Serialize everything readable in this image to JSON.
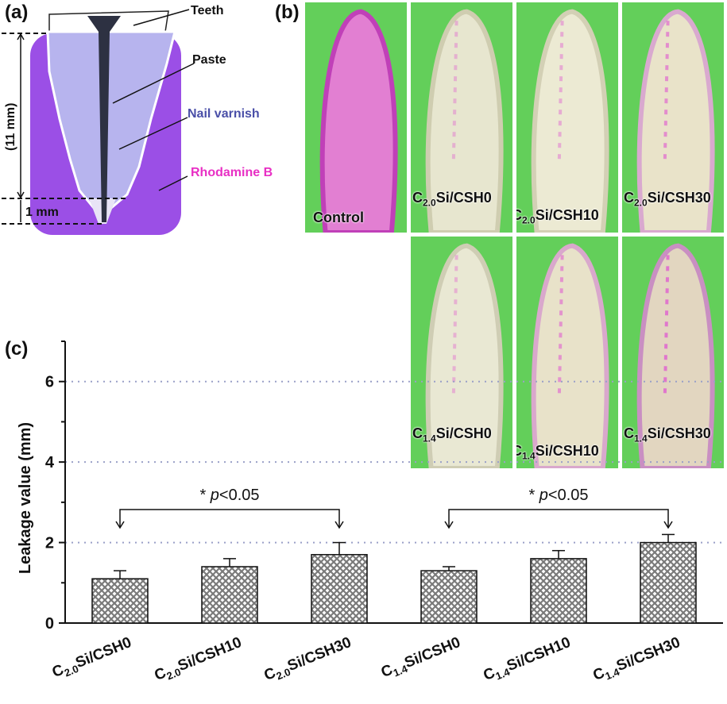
{
  "panel_labels": {
    "a": "(a)",
    "b": "(b)",
    "c": "(c)"
  },
  "schematic": {
    "teeth": "Teeth",
    "paste": "Paste",
    "nail_varnish": "Nail varnish",
    "rhodamine": "Rhodamine B",
    "len_11": "(11 mm)",
    "len_1": "1 mm",
    "colors": {
      "purple": "#9b4fe6",
      "root": "#b7b4ee",
      "paste": "#2d3142",
      "varnish_text": "#4a4fa8",
      "rhodamine_text": "#e82fc4"
    }
  },
  "photos": [
    {
      "label": "Control",
      "main": "",
      "sub": ""
    },
    {
      "label": "",
      "main": "C",
      "sub": "2.0",
      "tail": "Si/CSH0"
    },
    {
      "label": "",
      "main": "C",
      "sub": "2.0",
      "tail": "Si/CSH10"
    },
    {
      "label": "",
      "main": "C",
      "sub": "2.0",
      "tail": "Si/CSH30"
    },
    {
      "label": "",
      "main": "C",
      "sub": "1.4",
      "tail": "Si/CSH0"
    },
    {
      "label": "",
      "main": "C",
      "sub": "1.4",
      "tail": "Si/CSH10"
    },
    {
      "label": "",
      "main": "C",
      "sub": "1.4",
      "tail": "Si/CSH30"
    }
  ],
  "significance": [
    {
      "star": "* ",
      "p": "p",
      "text": "<0.05"
    },
    {
      "star": "* ",
      "p": "p",
      "text": "<0.05"
    }
  ],
  "chart_data": {
    "type": "bar",
    "categories": [
      {
        "main": "C",
        "sub": "2.0",
        "tail": "Si/CSH0"
      },
      {
        "main": "C",
        "sub": "2.0",
        "tail": "Si/CSH10"
      },
      {
        "main": "C",
        "sub": "2.0",
        "tail": "Si/CSH30"
      },
      {
        "main": "C",
        "sub": "1.4",
        "tail": "Si/CSH0"
      },
      {
        "main": "C",
        "sub": "1.4",
        "tail": "Si/CSH10"
      },
      {
        "main": "C",
        "sub": "1.4",
        "tail": "Si/CSH30"
      }
    ],
    "values": [
      1.1,
      1.4,
      1.7,
      1.3,
      1.6,
      2.0
    ],
    "errors": [
      0.2,
      0.2,
      0.3,
      0.1,
      0.2,
      0.2
    ],
    "ylabel": "Leakage value (mm)",
    "ylim": [
      0,
      7
    ],
    "yticks": [
      0,
      2,
      4,
      6
    ],
    "reference_lines": [
      2,
      4,
      6
    ],
    "bar_pattern": "crosshatch",
    "bar_color": "#7a7a7a"
  }
}
